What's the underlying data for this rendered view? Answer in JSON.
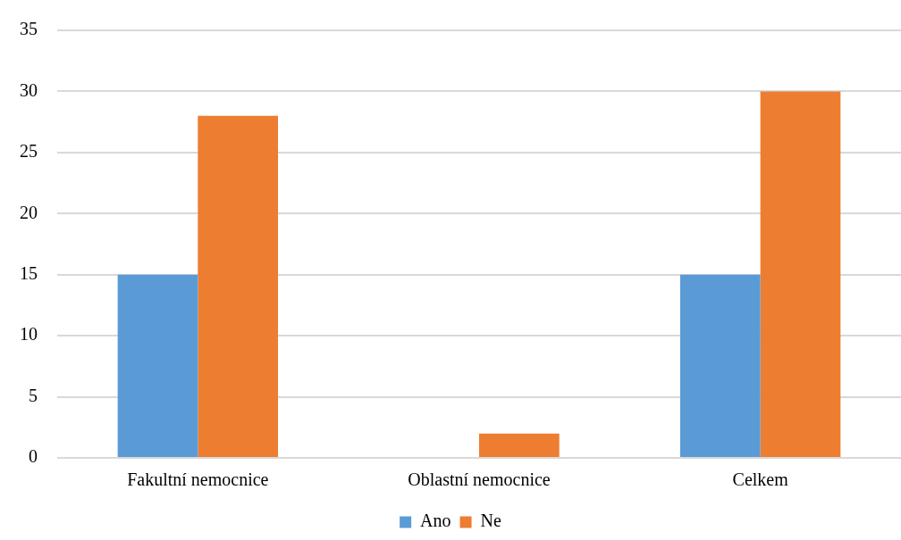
{
  "chart_data": {
    "type": "bar",
    "categories": [
      "Fakultní nemocnice",
      "Oblastní nemocnice",
      "Celkem"
    ],
    "series": [
      {
        "name": "Ano",
        "color": "#5b9bd5",
        "values": [
          15,
          0,
          15
        ]
      },
      {
        "name": "Ne",
        "color": "#ed7d31",
        "values": [
          28,
          2,
          30
        ]
      }
    ],
    "ylim": [
      0,
      35
    ],
    "yticks": [
      0,
      5,
      10,
      15,
      20,
      25,
      30,
      35
    ],
    "grid": "y",
    "legend": "bottom"
  }
}
